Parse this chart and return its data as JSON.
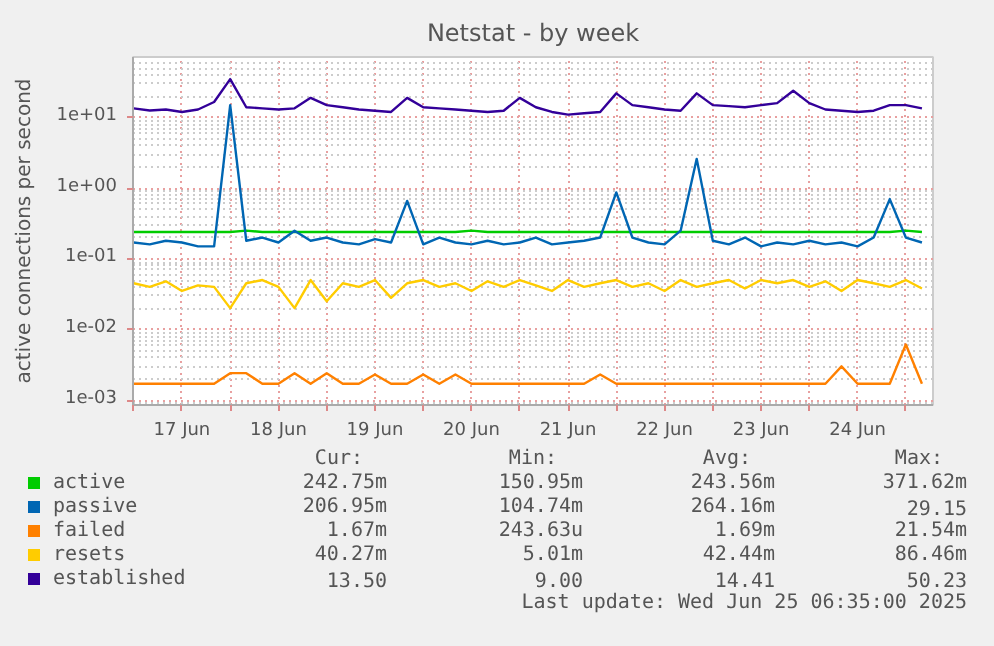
{
  "chart_data": {
    "type": "line",
    "title": "Netstat - by week",
    "ylabel": "active connections per second",
    "x": [
      "2025-06-17T00:00",
      "2025-06-17T04:00",
      "2025-06-17T08:00",
      "2025-06-17T12:00",
      "2025-06-17T16:00",
      "2025-06-17T20:00",
      "2025-06-18T00:00",
      "2025-06-18T04:00",
      "2025-06-18T08:00",
      "2025-06-18T12:00",
      "2025-06-18T16:00",
      "2025-06-18T20:00",
      "2025-06-19T00:00",
      "2025-06-19T04:00",
      "2025-06-19T08:00",
      "2025-06-19T12:00",
      "2025-06-19T16:00",
      "2025-06-19T20:00",
      "2025-06-20T00:00",
      "2025-06-20T04:00",
      "2025-06-20T08:00",
      "2025-06-20T12:00",
      "2025-06-20T16:00",
      "2025-06-20T20:00",
      "2025-06-21T00:00",
      "2025-06-21T04:00",
      "2025-06-21T08:00",
      "2025-06-21T12:00",
      "2025-06-21T16:00",
      "2025-06-21T20:00",
      "2025-06-22T00:00",
      "2025-06-22T04:00",
      "2025-06-22T08:00",
      "2025-06-22T12:00",
      "2025-06-22T16:00",
      "2025-06-22T20:00",
      "2025-06-23T00:00",
      "2025-06-23T04:00",
      "2025-06-23T08:00",
      "2025-06-23T12:00",
      "2025-06-23T16:00",
      "2025-06-23T20:00",
      "2025-06-24T00:00",
      "2025-06-24T04:00",
      "2025-06-24T08:00",
      "2025-06-24T12:00",
      "2025-06-24T16:00",
      "2025-06-24T20:00",
      "2025-06-25T00:00",
      "2025-06-25T04:00"
    ],
    "series": [
      {
        "name": "active",
        "color": "#00cc00",
        "values": [
          0.24,
          0.24,
          0.24,
          0.24,
          0.24,
          0.24,
          0.24,
          0.25,
          0.24,
          0.24,
          0.24,
          0.24,
          0.24,
          0.24,
          0.24,
          0.24,
          0.24,
          0.24,
          0.24,
          0.24,
          0.24,
          0.25,
          0.24,
          0.24,
          0.24,
          0.24,
          0.24,
          0.24,
          0.24,
          0.24,
          0.24,
          0.24,
          0.24,
          0.24,
          0.24,
          0.24,
          0.24,
          0.24,
          0.24,
          0.24,
          0.24,
          0.24,
          0.24,
          0.24,
          0.24,
          0.24,
          0.24,
          0.24,
          0.25,
          0.24
        ]
      },
      {
        "name": "passive",
        "color": "#0066b3",
        "values": [
          0.17,
          0.16,
          0.18,
          0.17,
          0.15,
          0.15,
          15,
          0.18,
          0.2,
          0.17,
          0.25,
          0.18,
          0.2,
          0.17,
          0.16,
          0.19,
          0.17,
          0.66,
          0.16,
          0.2,
          0.17,
          0.16,
          0.18,
          0.16,
          0.17,
          0.2,
          0.16,
          0.17,
          0.18,
          0.2,
          0.87,
          0.2,
          0.17,
          0.16,
          0.25,
          2.6,
          0.18,
          0.16,
          0.2,
          0.15,
          0.17,
          0.16,
          0.18,
          0.16,
          0.17,
          0.15,
          0.2,
          0.7,
          0.2,
          0.17
        ]
      },
      {
        "name": "failed",
        "color": "#ff8000",
        "values": [
          0.0017,
          0.0017,
          0.0017,
          0.0017,
          0.0017,
          0.0017,
          0.0024,
          0.0024,
          0.0017,
          0.0017,
          0.0024,
          0.0017,
          0.0024,
          0.0017,
          0.0017,
          0.0023,
          0.0017,
          0.0017,
          0.0023,
          0.0017,
          0.0023,
          0.0017,
          0.0017,
          0.0017,
          0.0017,
          0.0017,
          0.0017,
          0.0017,
          0.0017,
          0.0023,
          0.0017,
          0.0017,
          0.0017,
          0.0017,
          0.0017,
          0.0017,
          0.0017,
          0.0017,
          0.0017,
          0.0017,
          0.0017,
          0.0017,
          0.0017,
          0.0017,
          0.003,
          0.0017,
          0.0017,
          0.0017,
          0.0061,
          0.0017
        ]
      },
      {
        "name": "resets",
        "color": "#ffcc00",
        "values": [
          0.045,
          0.04,
          0.048,
          0.035,
          0.042,
          0.04,
          0.02,
          0.045,
          0.05,
          0.04,
          0.02,
          0.05,
          0.025,
          0.045,
          0.04,
          0.05,
          0.028,
          0.045,
          0.05,
          0.04,
          0.045,
          0.035,
          0.048,
          0.04,
          0.05,
          0.042,
          0.035,
          0.05,
          0.04,
          0.045,
          0.05,
          0.04,
          0.045,
          0.035,
          0.05,
          0.04,
          0.045,
          0.05,
          0.038,
          0.05,
          0.045,
          0.05,
          0.04,
          0.048,
          0.035,
          0.05,
          0.045,
          0.04,
          0.05,
          0.038
        ]
      },
      {
        "name": "established",
        "color": "#330099",
        "values": [
          13.5,
          12.6,
          13,
          12,
          13,
          16.6,
          35,
          14,
          13.5,
          13,
          13.5,
          19,
          15,
          14,
          13,
          12.5,
          12,
          19,
          14,
          13.5,
          13,
          12.5,
          12,
          12.5,
          19,
          14,
          12,
          11,
          11.5,
          12,
          22,
          15,
          14,
          13,
          12.5,
          22,
          15,
          14.5,
          14,
          15,
          16,
          24,
          16,
          13,
          12.5,
          12,
          12.5,
          15,
          15,
          13.5
        ]
      }
    ],
    "xlim": [
      "2025-06-16T23:50",
      "2025-06-25T06:45"
    ],
    "xticks": [
      {
        "value": "2025-06-17T00:00",
        "label": null
      },
      {
        "value": "2025-06-17T12:00",
        "label": "17 Jun"
      },
      {
        "value": "2025-06-18T00:00",
        "label": null
      },
      {
        "value": "2025-06-18T12:00",
        "label": "18 Jun"
      },
      {
        "value": "2025-06-19T00:00",
        "label": null
      },
      {
        "value": "2025-06-19T12:00",
        "label": "19 Jun"
      },
      {
        "value": "2025-06-20T00:00",
        "label": null
      },
      {
        "value": "2025-06-20T12:00",
        "label": "20 Jun"
      },
      {
        "value": "2025-06-21T00:00",
        "label": null
      },
      {
        "value": "2025-06-21T12:00",
        "label": "21 Jun"
      },
      {
        "value": "2025-06-22T00:00",
        "label": null
      },
      {
        "value": "2025-06-22T12:00",
        "label": "22 Jun"
      },
      {
        "value": "2025-06-23T00:00",
        "label": null
      },
      {
        "value": "2025-06-23T12:00",
        "label": "23 Jun"
      },
      {
        "value": "2025-06-24T00:00",
        "label": null
      },
      {
        "value": "2025-06-24T12:00",
        "label": "24 Jun"
      },
      {
        "value": "2025-06-25T00:00",
        "label": null
      }
    ],
    "ylim": [
      0.00085,
      72
    ],
    "yticks": [
      {
        "value": 0.001,
        "label": "1e-03"
      },
      {
        "value": 0.01,
        "label": "1e-02"
      },
      {
        "value": 0.1,
        "label": "1e-01"
      },
      {
        "value": 1,
        "label": "1e+00"
      },
      {
        "value": 10,
        "label": "1e+01"
      }
    ],
    "log": "y",
    "grid": true,
    "legend": "bottom",
    "line_style": "solid",
    "annotations": [
      "Cur:",
      "Min:",
      "Avg:",
      "Max:",
      "242.75m",
      "150.95m",
      "243.56m",
      "371.62m",
      "206.95m",
      "104.74m",
      "264.16m",
      "29.15",
      "1.67m",
      "243.63u",
      "1.69m",
      "21.54m",
      "40.27m",
      "5.01m",
      "42.44m",
      "86.46m",
      "13.50",
      "9.00",
      "14.41",
      "50.23",
      "Last update: Wed Jun 25 06:35:00 2025"
    ]
  }
}
